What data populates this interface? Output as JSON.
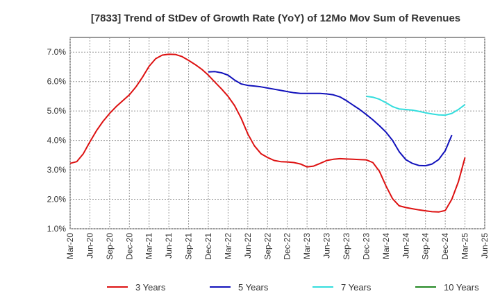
{
  "chart_data": {
    "type": "line",
    "title": "[7833]  Trend of StDev of Growth Rate (YoY) of 12Mo Mov Sum of Revenues",
    "xlabel": "",
    "ylabel": "",
    "y_unit": "%",
    "ylim": [
      1.0,
      7.5
    ],
    "yticks": [
      1.0,
      2.0,
      3.0,
      4.0,
      5.0,
      6.0,
      7.0
    ],
    "ytick_labels": [
      "1.0%",
      "2.0%",
      "3.0%",
      "4.0%",
      "5.0%",
      "6.0%",
      "7.0%"
    ],
    "xticks": [
      "Mar-20",
      "Jun-20",
      "Sep-20",
      "Dec-20",
      "Mar-21",
      "Jun-21",
      "Sep-21",
      "Dec-21",
      "Mar-22",
      "Jun-22",
      "Sep-22",
      "Dec-22",
      "Mar-23",
      "Jun-23",
      "Sep-23",
      "Dec-23",
      "Mar-24",
      "Jun-24",
      "Sep-24",
      "Dec-24",
      "Mar-25",
      "Jun-25"
    ],
    "grid": true,
    "legend_position": "bottom",
    "series": [
      {
        "name": "3 Years",
        "color": "#dd1111",
        "start_index": 0,
        "values": [
          3.22,
          3.28,
          3.55,
          3.95,
          4.33,
          4.65,
          4.92,
          5.15,
          5.35,
          5.55,
          5.82,
          6.15,
          6.52,
          6.78,
          6.9,
          6.93,
          6.92,
          6.85,
          6.72,
          6.58,
          6.42,
          6.22,
          5.98,
          5.75,
          5.5,
          5.18,
          4.75,
          4.22,
          3.82,
          3.55,
          3.42,
          3.32,
          3.28,
          3.27,
          3.25,
          3.2,
          3.1,
          3.13,
          3.22,
          3.32,
          3.36,
          3.38,
          3.37,
          3.36,
          3.35,
          3.34,
          3.25,
          2.95,
          2.45,
          2.02,
          1.78,
          1.72,
          1.68,
          1.64,
          1.61,
          1.58,
          1.57,
          1.62,
          2.0,
          2.6,
          3.42
        ]
      },
      {
        "name": "5 Years",
        "color": "#1111bb",
        "start_index": 21,
        "values": [
          6.33,
          6.34,
          6.3,
          6.22,
          6.05,
          5.92,
          5.87,
          5.85,
          5.82,
          5.78,
          5.74,
          5.7,
          5.66,
          5.62,
          5.6,
          5.6,
          5.6,
          5.6,
          5.58,
          5.55,
          5.48,
          5.35,
          5.2,
          5.05,
          4.88,
          4.7,
          4.5,
          4.28,
          4.0,
          3.62,
          3.35,
          3.22,
          3.15,
          3.14,
          3.2,
          3.35,
          3.65,
          4.18
        ]
      },
      {
        "name": "7 Years",
        "color": "#33dddd",
        "start_index": 45,
        "values": [
          5.5,
          5.47,
          5.4,
          5.28,
          5.15,
          5.07,
          5.05,
          5.03,
          4.99,
          4.94,
          4.9,
          4.87,
          4.86,
          4.92,
          5.05,
          5.22
        ]
      },
      {
        "name": "10 Years",
        "color": "#228822",
        "start_index": 0,
        "values": []
      }
    ]
  }
}
